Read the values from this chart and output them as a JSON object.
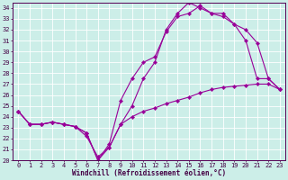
{
  "xlabel": "Windchill (Refroidissement éolien,°C)",
  "bg_color": "#cceee8",
  "line_color": "#990099",
  "grid_color": "#ffffff",
  "xlim": [
    -0.5,
    23.5
  ],
  "ylim": [
    20,
    34.5
  ],
  "xticks": [
    0,
    1,
    2,
    3,
    4,
    5,
    6,
    7,
    8,
    9,
    10,
    11,
    12,
    13,
    14,
    15,
    16,
    17,
    18,
    19,
    20,
    21,
    22,
    23
  ],
  "yticks": [
    20,
    21,
    22,
    23,
    24,
    25,
    26,
    27,
    28,
    29,
    30,
    31,
    32,
    33,
    34
  ],
  "line1_x": [
    0,
    1,
    2,
    3,
    4,
    5,
    6,
    7,
    8,
    9,
    10,
    11,
    12,
    13,
    14,
    15,
    16,
    17,
    18,
    19,
    20,
    21,
    22,
    23
  ],
  "line1_y": [
    24.5,
    23.3,
    23.3,
    23.5,
    23.3,
    23.1,
    22.5,
    20.0,
    21.2,
    23.3,
    24.0,
    24.5,
    24.8,
    25.2,
    25.5,
    25.8,
    26.2,
    26.5,
    26.7,
    26.8,
    26.9,
    27.0,
    27.0,
    26.5
  ],
  "line2_x": [
    0,
    1,
    2,
    3,
    4,
    5,
    6,
    7,
    8,
    9,
    10,
    11,
    12,
    13,
    14,
    15,
    16,
    17,
    18,
    19,
    20,
    21,
    22,
    23
  ],
  "line2_y": [
    24.5,
    23.3,
    23.3,
    23.5,
    23.3,
    23.1,
    22.5,
    20.0,
    21.5,
    25.5,
    27.5,
    29.0,
    29.5,
    31.8,
    33.2,
    33.5,
    34.2,
    33.5,
    33.2,
    32.5,
    32.0,
    30.8,
    27.5,
    26.5
  ],
  "line3_x": [
    0,
    1,
    2,
    3,
    4,
    5,
    6,
    7,
    8,
    9,
    10,
    11,
    12,
    13,
    14,
    15,
    16,
    17,
    18,
    19,
    20,
    21,
    22,
    23
  ],
  "line3_y": [
    24.5,
    23.3,
    23.3,
    23.5,
    23.3,
    23.1,
    22.2,
    20.3,
    21.2,
    23.3,
    25.0,
    27.5,
    29.0,
    32.0,
    33.5,
    34.5,
    34.0,
    33.5,
    33.5,
    32.5,
    31.0,
    27.5,
    27.5,
    26.5
  ],
  "marker": "D",
  "marker_size": 2.2,
  "line_width": 0.8,
  "font_size_tick": 5.0,
  "font_size_xlabel": 5.5,
  "font_family": "monospace"
}
